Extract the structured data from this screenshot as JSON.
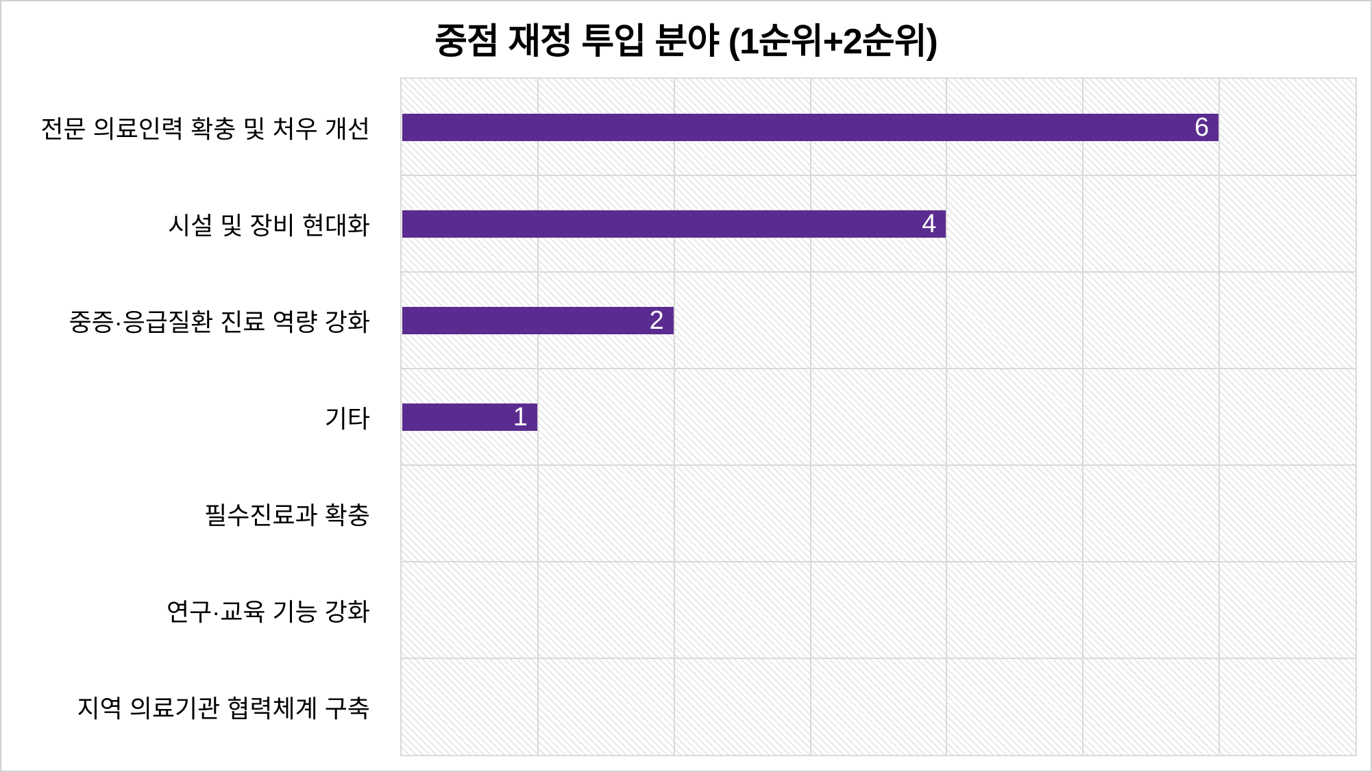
{
  "chart_data": {
    "type": "bar",
    "orientation": "horizontal",
    "title": "중점 재정 투입 분야 (1순위+2순위)",
    "categories": [
      "전문 의료인력 확충 및 처우 개선",
      "시설 및 장비 현대화",
      "중증·응급질환 진료 역량 강화",
      "기타",
      "필수진료과 확충",
      "연구·교육 기능 강화",
      "지역 의료기관 협력체계 구축"
    ],
    "values": [
      6,
      4,
      2,
      1,
      0,
      0,
      0
    ],
    "data_labels": [
      "6",
      "4",
      "2",
      "1",
      "",
      "",
      ""
    ],
    "xlabel": "",
    "ylabel": "",
    "xlim": [
      0,
      7
    ],
    "gridline_interval": 1,
    "grid": true,
    "legend": false,
    "axis_tick_labels_visible": false,
    "bar_color": "#5B2C8F",
    "data_label_color": "#FFFFFF",
    "gridline_color": "#D9D9D9",
    "plot_background_pattern": "light-diagonal-hatch",
    "title_color": "#000000",
    "category_label_color": "#000000"
  }
}
